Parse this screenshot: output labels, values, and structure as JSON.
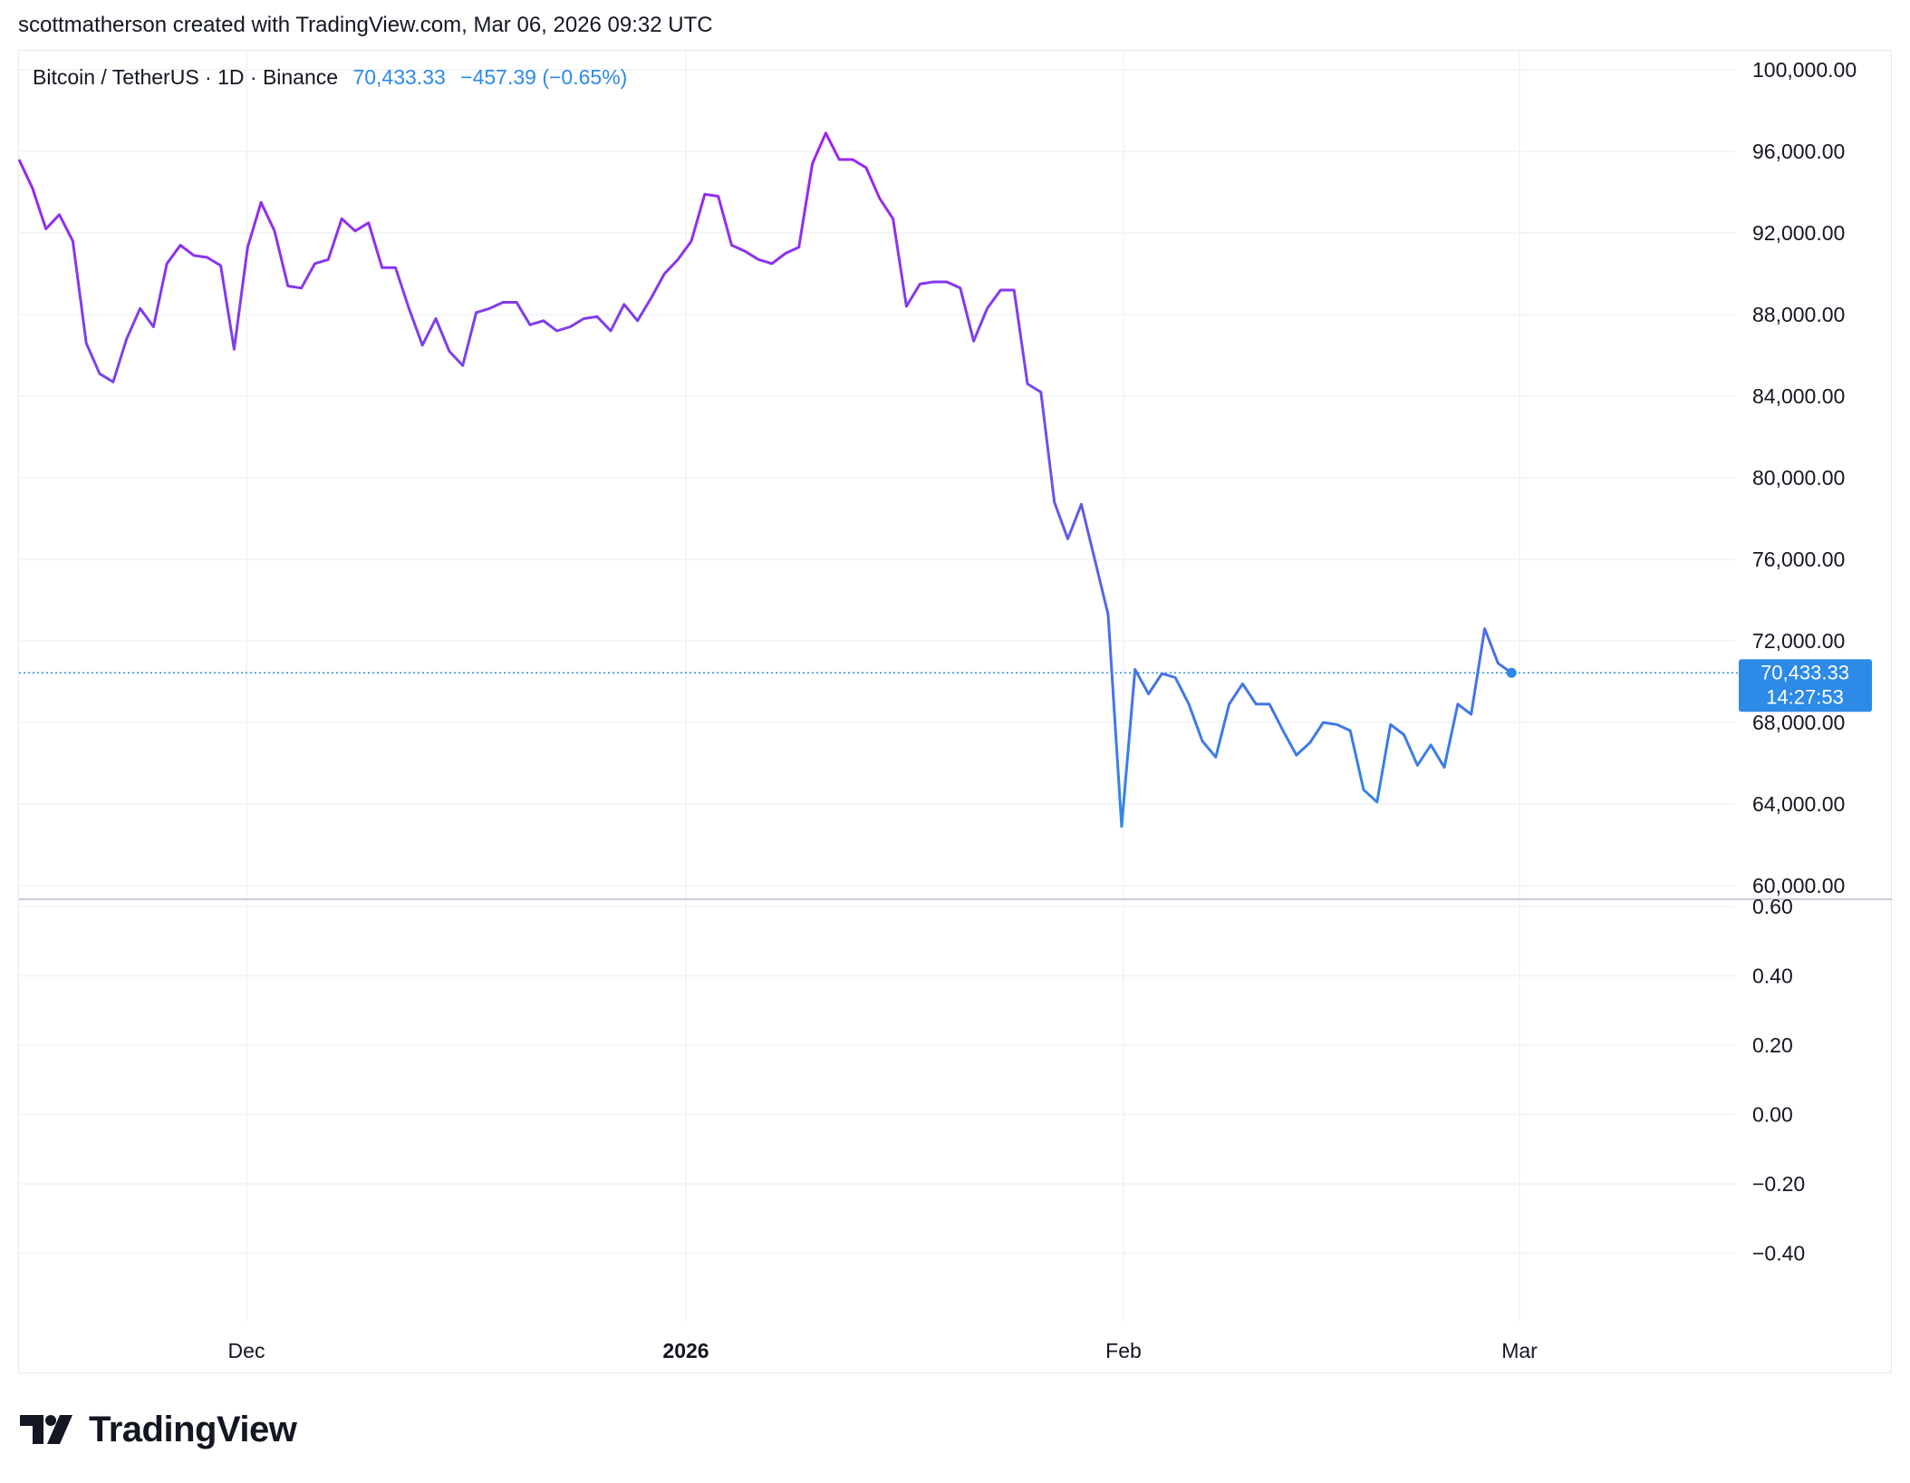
{
  "header": {
    "caption": "scottmatherson created with TradingView.com, Mar 06, 2026 09:32 UTC"
  },
  "legend": {
    "symbol": "Bitcoin / TetherUS · 1D · Binance",
    "price": "70,433.33",
    "change": "−457.39 (−0.65%)"
  },
  "price_badge": {
    "price": "70,433.33",
    "countdown": "14:27:53"
  },
  "footer": {
    "logo_text": "TradingView"
  },
  "colors": {
    "line_start": "#a020f0",
    "line_end": "#2d8ae6",
    "badge": "#2d8ae6",
    "grid": "#f0f2f5"
  },
  "chart_data": [
    {
      "type": "line",
      "title": "",
      "series": [
        {
          "name": "",
          "values": [
            95600,
            94200,
            92200,
            92900,
            91600,
            86600,
            85100,
            84700,
            86800,
            88300,
            87400,
            90500,
            91400,
            90900,
            90800,
            90400,
            86300,
            91300,
            93500,
            92100,
            89400,
            89300,
            90500,
            90700,
            92700,
            92100,
            92500,
            90300,
            90300,
            88300,
            86500,
            87800,
            86200,
            85500,
            88100,
            88300,
            88600,
            88600,
            87500,
            87700,
            87200,
            87400,
            87800,
            87900,
            87200,
            88500,
            87700,
            88800,
            90000,
            90700,
            91600,
            93900,
            93800,
            91400,
            91100,
            90700,
            90500,
            91000,
            91300,
            95400,
            96900,
            95600,
            95600,
            95200,
            93700,
            92700,
            88400,
            89500,
            89600,
            89600,
            89300,
            86700,
            88300,
            89200,
            89200,
            84600,
            84200,
            78800,
            77000,
            78700,
            76000,
            73300,
            62900,
            70600,
            69400,
            70400,
            70200,
            68900,
            67100,
            66300,
            68900,
            69900,
            68900,
            68900,
            67600,
            66400,
            67000,
            68000,
            67900,
            67600,
            64700,
            64100,
            67900,
            67400,
            65900,
            66900,
            65800,
            68900,
            68400,
            72600,
            70900,
            70433
          ]
        }
      ],
      "x_ticks": [
        "Dec",
        "2026",
        "Feb",
        "Mar"
      ],
      "y_ticks": [
        "100,000.00",
        "96,000.00",
        "92,000.00",
        "88,000.00",
        "84,000.00",
        "80,000.00",
        "76,000.00",
        "72,000.00",
        "68,000.00",
        "64,000.00",
        "60,000.00"
      ],
      "ylim": [
        60000,
        100000
      ],
      "last_value": 70433.33,
      "grid": true,
      "axis_position": "right"
    },
    {
      "type": "line",
      "title": "",
      "series": [],
      "y_ticks": [
        "0.60",
        "0.40",
        "0.20",
        "0.00",
        "−0.20",
        "−0.40"
      ],
      "ylim": [
        -0.6,
        0.6
      ],
      "grid": true,
      "axis_position": "right"
    }
  ]
}
